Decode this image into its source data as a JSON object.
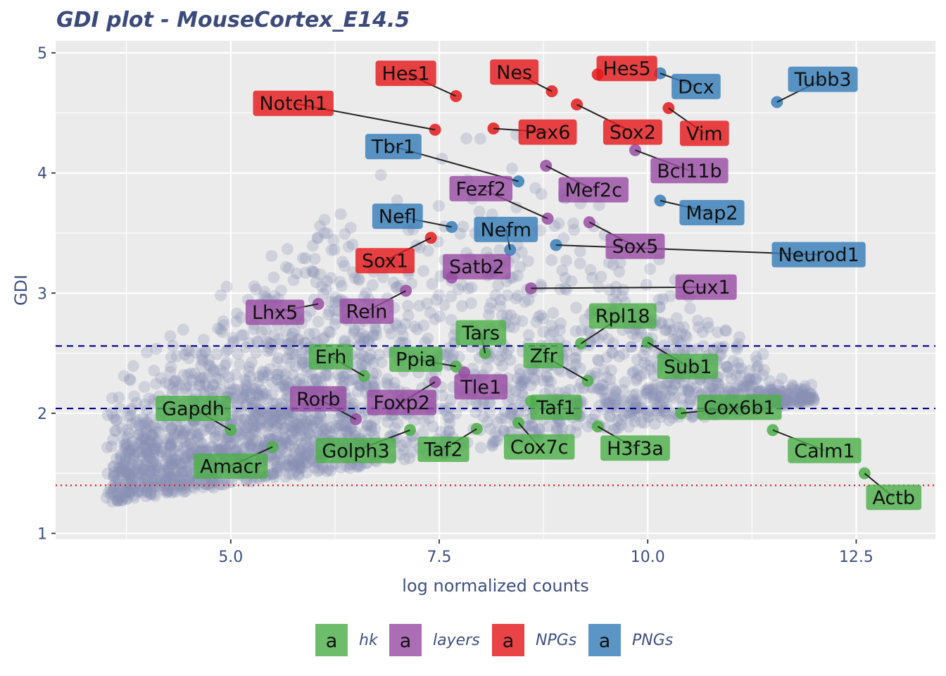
{
  "chart_data": {
    "type": "scatter",
    "title": "GDI plot - MouseCortex_E14.5",
    "xlabel": "log normalized counts",
    "ylabel": "GDI",
    "xlim": [
      2.9,
      13.45
    ],
    "ylim": [
      0.95,
      5.1
    ],
    "xticks": [
      5.0,
      7.5,
      10.0,
      12.5
    ],
    "xtick_labels": [
      "5.0",
      "7.5",
      "10.0",
      "12.5"
    ],
    "yticks": [
      1,
      2,
      3,
      4,
      5
    ],
    "ytick_labels": [
      "1",
      "2",
      "3",
      "4",
      "5"
    ],
    "grid": true,
    "hlines": [
      {
        "y": 2.56,
        "color": "#00008b",
        "style": "dashed"
      },
      {
        "y": 2.04,
        "color": "#00008b",
        "style": "dashed"
      },
      {
        "y": 1.4,
        "color": "#e4131b",
        "style": "dotted"
      }
    ],
    "background_color": "#8790b3",
    "group_colors": {
      "hk": "#4daf4a",
      "layers": "#984ea3",
      "NPGs": "#e41a1c",
      "PNGs": "#377eb8"
    },
    "legend": {
      "position": "bottom",
      "key_glyph": "a",
      "entries": [
        {
          "key": "hk",
          "label": "hk"
        },
        {
          "key": "layers",
          "label": "layers"
        },
        {
          "key": "NPGs",
          "label": "NPGs"
        },
        {
          "key": "PNGs",
          "label": "PNGs"
        }
      ]
    },
    "genes": [
      {
        "name": "Hes1",
        "group": "NPGs",
        "x": 7.7,
        "y": 4.64,
        "lx": 7.1,
        "ly": 4.83
      },
      {
        "name": "Nes",
        "group": "NPGs",
        "x": 8.85,
        "y": 4.68,
        "lx": 8.4,
        "ly": 4.84
      },
      {
        "name": "Hes5",
        "group": "NPGs",
        "x": 9.4,
        "y": 4.82,
        "lx": 9.75,
        "ly": 4.87
      },
      {
        "name": "Notch1",
        "group": "NPGs",
        "x": 7.45,
        "y": 4.36,
        "lx": 5.75,
        "ly": 4.58
      },
      {
        "name": "Pax6",
        "group": "NPGs",
        "x": 8.15,
        "y": 4.37,
        "lx": 8.8,
        "ly": 4.34
      },
      {
        "name": "Sox2",
        "group": "NPGs",
        "x": 9.15,
        "y": 4.57,
        "lx": 9.82,
        "ly": 4.34
      },
      {
        "name": "Vim",
        "group": "NPGs",
        "x": 10.25,
        "y": 4.54,
        "lx": 10.68,
        "ly": 4.33
      },
      {
        "name": "Sox1",
        "group": "NPGs",
        "x": 7.4,
        "y": 3.46,
        "lx": 6.85,
        "ly": 3.27
      },
      {
        "name": "Dcx",
        "group": "PNGs",
        "x": 10.15,
        "y": 4.83,
        "lx": 10.58,
        "ly": 4.72
      },
      {
        "name": "Tubb3",
        "group": "PNGs",
        "x": 11.55,
        "y": 4.59,
        "lx": 12.1,
        "ly": 4.78
      },
      {
        "name": "Tbr1",
        "group": "PNGs",
        "x": 8.45,
        "y": 3.93,
        "lx": 6.95,
        "ly": 4.22
      },
      {
        "name": "Map2",
        "group": "PNGs",
        "x": 10.15,
        "y": 3.77,
        "lx": 10.77,
        "ly": 3.67
      },
      {
        "name": "Nefl",
        "group": "PNGs",
        "x": 7.65,
        "y": 3.55,
        "lx": 7.0,
        "ly": 3.64
      },
      {
        "name": "Nefm",
        "group": "PNGs",
        "x": 8.35,
        "y": 3.36,
        "lx": 8.3,
        "ly": 3.53
      },
      {
        "name": "Neurod1",
        "group": "PNGs",
        "x": 8.9,
        "y": 3.4,
        "lx": 12.05,
        "ly": 3.32
      },
      {
        "name": "Bcl11b",
        "group": "layers",
        "x": 9.85,
        "y": 4.19,
        "lx": 10.5,
        "ly": 4.02
      },
      {
        "name": "Mef2c",
        "group": "layers",
        "x": 8.78,
        "y": 4.06,
        "lx": 9.35,
        "ly": 3.86
      },
      {
        "name": "Fezf2",
        "group": "layers",
        "x": 8.8,
        "y": 3.62,
        "lx": 8.0,
        "ly": 3.87
      },
      {
        "name": "Sox5",
        "group": "layers",
        "x": 9.3,
        "y": 3.59,
        "lx": 9.85,
        "ly": 3.39
      },
      {
        "name": "Satb2",
        "group": "layers",
        "x": 7.65,
        "y": 3.13,
        "lx": 7.95,
        "ly": 3.22
      },
      {
        "name": "Cux1",
        "group": "layers",
        "x": 8.6,
        "y": 3.04,
        "lx": 10.7,
        "ly": 3.05
      },
      {
        "name": "Lhx5",
        "group": "layers",
        "x": 6.05,
        "y": 2.91,
        "lx": 5.53,
        "ly": 2.84
      },
      {
        "name": "Reln",
        "group": "layers",
        "x": 7.1,
        "y": 3.02,
        "lx": 6.63,
        "ly": 2.85
      },
      {
        "name": "Rorb",
        "group": "layers",
        "x": 6.5,
        "y": 1.95,
        "lx": 6.05,
        "ly": 2.12
      },
      {
        "name": "Foxp2",
        "group": "layers",
        "x": 7.45,
        "y": 2.26,
        "lx": 7.05,
        "ly": 2.09
      },
      {
        "name": "Tle1",
        "group": "layers",
        "x": 7.8,
        "y": 2.34,
        "lx": 8.0,
        "ly": 2.22
      },
      {
        "name": "Tars",
        "group": "hk",
        "x": 8.05,
        "y": 2.5,
        "lx": 8.0,
        "ly": 2.67
      },
      {
        "name": "Rpl18",
        "group": "hk",
        "x": 9.2,
        "y": 2.58,
        "lx": 9.7,
        "ly": 2.81
      },
      {
        "name": "Erh",
        "group": "hk",
        "x": 6.6,
        "y": 2.31,
        "lx": 6.2,
        "ly": 2.47
      },
      {
        "name": "Ppia",
        "group": "hk",
        "x": 7.7,
        "y": 2.39,
        "lx": 7.22,
        "ly": 2.45
      },
      {
        "name": "Zfr",
        "group": "hk",
        "x": 9.28,
        "y": 2.27,
        "lx": 8.75,
        "ly": 2.48
      },
      {
        "name": "Sub1",
        "group": "hk",
        "x": 10.0,
        "y": 2.59,
        "lx": 10.48,
        "ly": 2.39
      },
      {
        "name": "Gapdh",
        "group": "hk",
        "x": 5.0,
        "y": 1.86,
        "lx": 4.55,
        "ly": 2.04
      },
      {
        "name": "Taf1",
        "group": "hk",
        "x": 8.6,
        "y": 2.1,
        "lx": 8.9,
        "ly": 2.05
      },
      {
        "name": "Cox6b1",
        "group": "hk",
        "x": 10.4,
        "y": 2.0,
        "lx": 11.1,
        "ly": 2.05
      },
      {
        "name": "Golph3",
        "group": "hk",
        "x": 7.15,
        "y": 1.86,
        "lx": 6.5,
        "ly": 1.69
      },
      {
        "name": "Taf2",
        "group": "hk",
        "x": 7.95,
        "y": 1.87,
        "lx": 7.55,
        "ly": 1.7
      },
      {
        "name": "Cox7c",
        "group": "hk",
        "x": 8.45,
        "y": 1.92,
        "lx": 8.7,
        "ly": 1.72
      },
      {
        "name": "H3f3a",
        "group": "hk",
        "x": 9.4,
        "y": 1.89,
        "lx": 9.85,
        "ly": 1.71
      },
      {
        "name": "Amacr",
        "group": "hk",
        "x": 5.5,
        "y": 1.72,
        "lx": 5.0,
        "ly": 1.56
      },
      {
        "name": "Calm1",
        "group": "hk",
        "x": 11.5,
        "y": 1.86,
        "lx": 12.12,
        "ly": 1.69
      },
      {
        "name": "Actb",
        "group": "hk",
        "x": 12.6,
        "y": 1.5,
        "lx": 12.95,
        "ly": 1.3
      }
    ]
  }
}
